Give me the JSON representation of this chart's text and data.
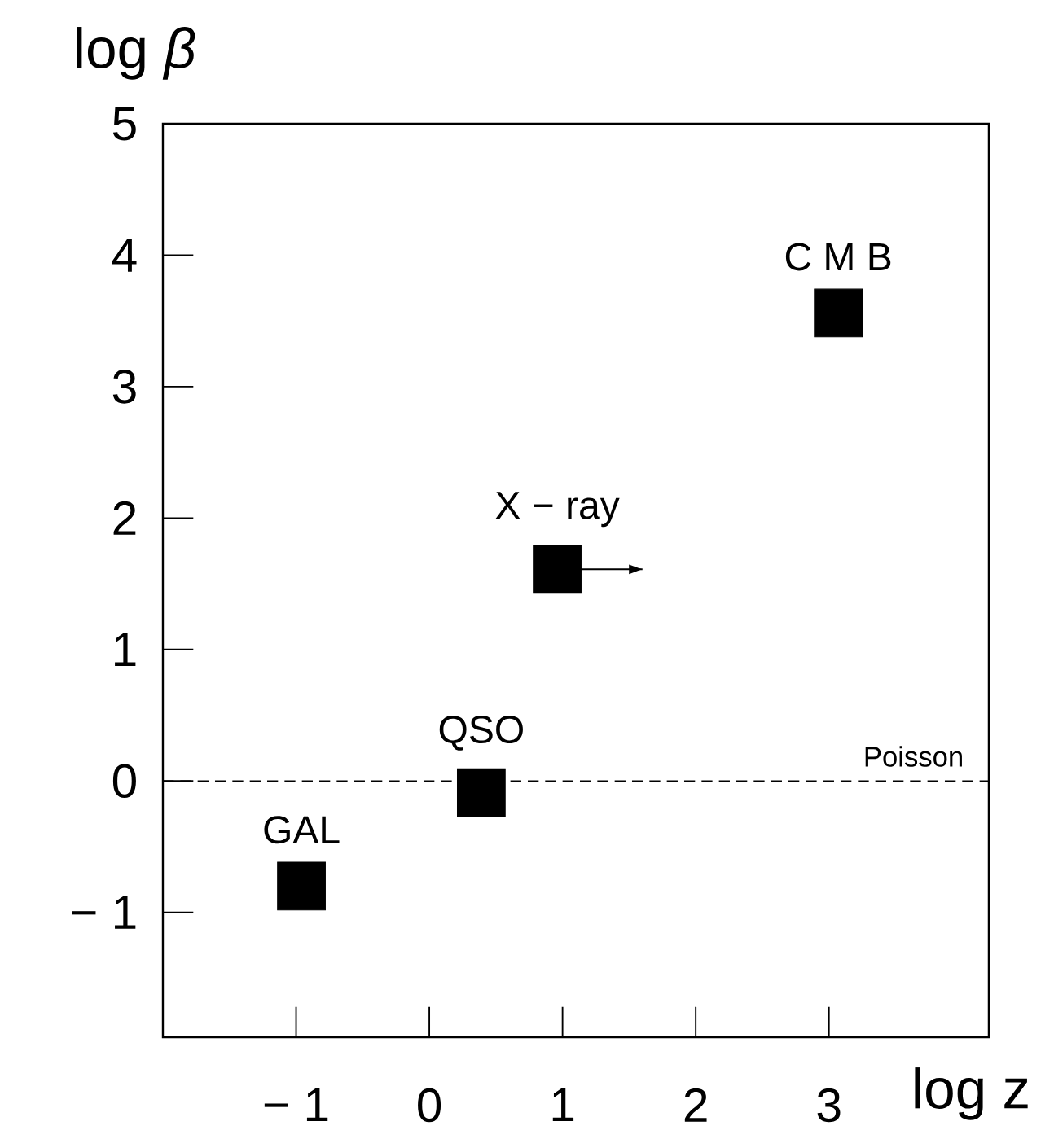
{
  "chart_data": {
    "type": "scatter",
    "xlabel": "log z",
    "ylabel": "log *β*",
    "xlim": [
      -2,
      4.2
    ],
    "ylim": [
      -1.95,
      5
    ],
    "xticks": [
      {
        "value": -1,
        "label": "− 1"
      },
      0,
      1,
      2,
      3
    ],
    "yticks": [
      {
        "value": -1,
        "label": "− 1"
      },
      0,
      1,
      2,
      3,
      4,
      5
    ],
    "marker": "square",
    "ref_lines": [
      {
        "axis": "y",
        "value": 0,
        "label": "Poisson",
        "line_style": "dashed",
        "color": "#000000"
      }
    ],
    "series": [
      {
        "name": "GAL",
        "color": "#000000",
        "x": [
          -0.96
        ],
        "values": [
          -0.8
        ]
      },
      {
        "name": "QSO",
        "color": "#000000",
        "x": [
          0.39
        ],
        "values": [
          -0.09
        ]
      },
      {
        "name": "X − ray",
        "color": "#000000",
        "x": [
          0.96
        ],
        "values": [
          1.61
        ],
        "xerrors": [
          [
            0.96,
            1.6
          ]
        ]
      },
      {
        "name": "C M B",
        "color": "#000000",
        "x": [
          3.07
        ],
        "values": [
          3.56
        ]
      }
    ]
  }
}
